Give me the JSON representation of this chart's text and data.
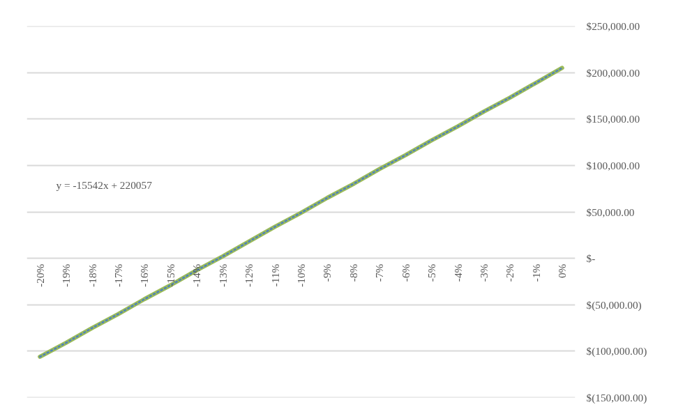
{
  "chart_data": {
    "type": "line",
    "categories": [
      "-20%",
      "-19%",
      "-18%",
      "-17%",
      "-16%",
      "-15%",
      "-14%",
      "-13%",
      "-12%",
      "-11%",
      "-10%",
      "-9%",
      "-8%",
      "-7%",
      "-6%",
      "-5%",
      "-4%",
      "-3%",
      "-2%",
      "-1%",
      "0%"
    ],
    "series": [
      {
        "color": "#9bbb59",
        "values": [
          -106000,
          -91000,
          -75000,
          -60000,
          -44000,
          -29000,
          -13000,
          2000,
          18000,
          34000,
          49000,
          65000,
          80000,
          96000,
          111000,
          127000,
          142000,
          158000,
          173000,
          189000,
          205000
        ]
      },
      {
        "type": "line",
        "color": "#4f81bd",
        "line_style": "dotted",
        "values": [
          -106000,
          -91000,
          -75000,
          -60000,
          -44000,
          -29000,
          -13000,
          2000,
          18000,
          34000,
          49000,
          65000,
          80000,
          96000,
          111000,
          127000,
          142000,
          158000,
          173000,
          189000,
          205000
        ]
      }
    ],
    "ylim": [
      -150000,
      250000
    ],
    "yticks": [
      {
        "value": -150000,
        "label": "$(150,000.00)"
      },
      {
        "value": -100000,
        "label": "$(100,000.00)"
      },
      {
        "value": -50000,
        "label": "$(50,000.00)"
      },
      {
        "value": 0,
        "label": "$-"
      },
      {
        "value": 50000,
        "label": "$50,000.00"
      },
      {
        "value": 100000,
        "label": "$100,000.00"
      },
      {
        "value": 150000,
        "label": "$150,000.00"
      },
      {
        "value": 200000,
        "label": "$200,000.00"
      },
      {
        "value": 250000,
        "label": "$250,000.00"
      }
    ],
    "grid": "y",
    "annotations": [
      "y = -15542x + 220057"
    ]
  }
}
